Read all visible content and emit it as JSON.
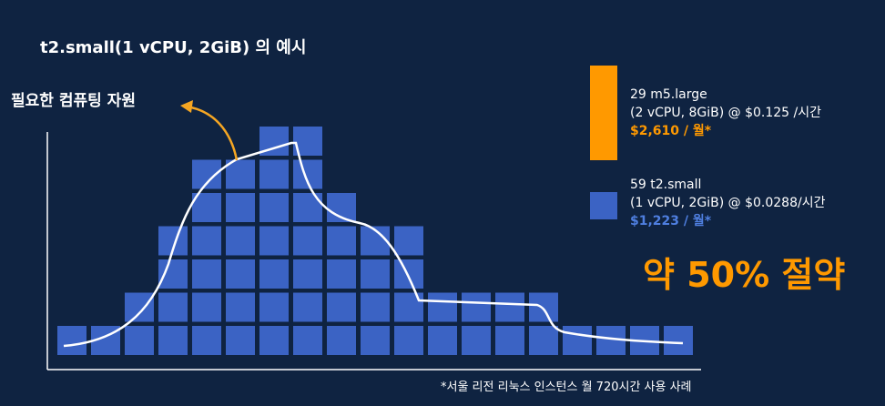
{
  "title": "t2.small(1 vCPU, 2GiB) 의 예시",
  "curve_label": "필요한 컴퓨팅 자원",
  "diagram": {
    "columns": [
      1,
      1,
      2,
      4,
      6,
      6,
      7,
      7,
      5,
      4,
      4,
      2,
      2,
      2,
      2,
      1,
      1,
      1,
      1
    ]
  },
  "legend": [
    {
      "line1": "29 m5.large",
      "line2": "(2 vCPU, 8GiB) @ $0.125 /시간",
      "price": "$2,610 / 월*"
    },
    {
      "line1": "59 t2.small",
      "line2": "(1 vCPU, 2GiB) @ $0.0288/시간",
      "price": "$1,223 / 월*"
    }
  ],
  "savings": "약 50% 절약",
  "footnote": "*서울 리전  리눅스 인스턴스 월 720시간 사용 사례"
}
